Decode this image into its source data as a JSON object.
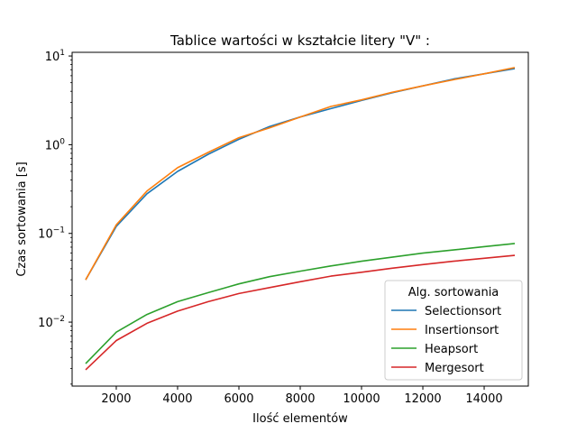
{
  "chart_data": {
    "type": "line",
    "title": "Tablice wartości w kształcie litery \"V\" :",
    "xlabel": "Ilość elementów",
    "ylabel": "Czas sortowania [s]",
    "xlim": [
      560,
      15440
    ],
    "ylim": [
      0.0019,
      11
    ],
    "yscale": "log",
    "xticks": [
      2000,
      4000,
      6000,
      8000,
      10000,
      12000,
      14000
    ],
    "xtick_labels": [
      "2000",
      "4000",
      "6000",
      "8000",
      "10000",
      "12000",
      "14000"
    ],
    "yticks": [
      0.01,
      0.1,
      1,
      10
    ],
    "ytick_labels": [
      {
        "base": "10",
        "exp": "−2"
      },
      {
        "base": "10",
        "exp": "−1"
      },
      {
        "base": "10",
        "exp": "0"
      },
      {
        "base": "10",
        "exp": "1"
      }
    ],
    "legend": {
      "title": "Alg. sortowania",
      "placement": "lower right"
    },
    "x": [
      1000,
      2000,
      3000,
      4000,
      5000,
      6000,
      7000,
      8000,
      9000,
      10000,
      11000,
      12000,
      13000,
      14000,
      15000
    ],
    "series": [
      {
        "name": "Selectionsort",
        "color": "#1f77b4",
        "values": [
          0.03,
          0.12,
          0.28,
          0.5,
          0.78,
          1.15,
          1.6,
          2.05,
          2.55,
          3.15,
          3.85,
          4.6,
          5.5,
          6.3,
          7.2
        ]
      },
      {
        "name": "Insertionsort",
        "color": "#ff7f0e",
        "values": [
          0.03,
          0.125,
          0.3,
          0.55,
          0.82,
          1.2,
          1.55,
          2.05,
          2.7,
          3.2,
          3.9,
          4.6,
          5.4,
          6.3,
          7.4
        ]
      },
      {
        "name": "Heapsort",
        "color": "#2ca02c",
        "values": [
          0.0034,
          0.0077,
          0.0122,
          0.017,
          0.0215,
          0.027,
          0.0325,
          0.0375,
          0.043,
          0.0485,
          0.054,
          0.06,
          0.065,
          0.071,
          0.077
        ]
      },
      {
        "name": "Mergesort",
        "color": "#d62728",
        "values": [
          0.0029,
          0.0062,
          0.0097,
          0.0133,
          0.017,
          0.021,
          0.0245,
          0.0285,
          0.033,
          0.0365,
          0.0405,
          0.0445,
          0.0485,
          0.0525,
          0.0565
        ]
      }
    ]
  }
}
